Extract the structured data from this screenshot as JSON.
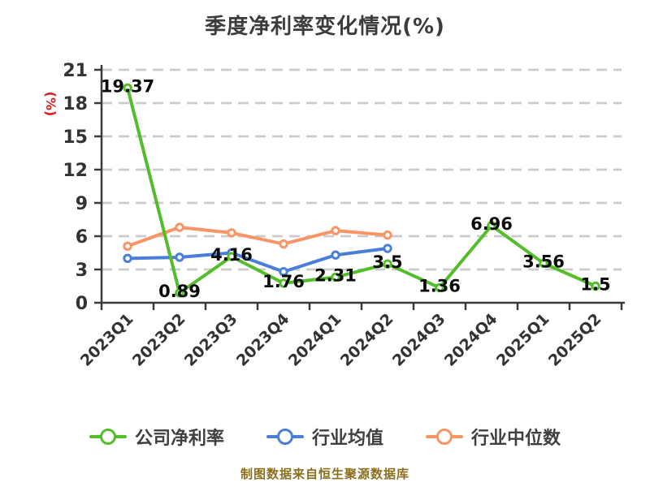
{
  "title": "季度净利率变化情况(%)",
  "footer": "制图数据来自恒生聚源数据库",
  "chart_data": {
    "type": "line",
    "title": "季度净利率变化情况(%)",
    "categories": [
      "2023Q1",
      "2023Q2",
      "2023Q3",
      "2023Q4",
      "2024Q1",
      "2024Q2",
      "2024Q3",
      "2024Q4",
      "2025Q1",
      "2025Q2"
    ],
    "series": [
      {
        "name": "公司净利率",
        "color": "#53bd2a",
        "values": [
          19.37,
          0.89,
          4.16,
          1.76,
          2.31,
          3.5,
          1.36,
          6.96,
          3.56,
          1.5
        ],
        "data_labels": true
      },
      {
        "name": "行业均值",
        "color": "#4a7ed9",
        "values": [
          4.0,
          4.1,
          4.5,
          2.8,
          4.3,
          4.9
        ],
        "data_labels": false
      },
      {
        "name": "行业中位数",
        "color": "#f99467",
        "values": [
          5.1,
          6.8,
          6.3,
          5.3,
          6.5,
          6.1
        ],
        "data_labels": false
      }
    ],
    "xlabel": "",
    "ylabel": "(%)",
    "ylim": [
      0,
      21
    ],
    "y_ticks": [
      0,
      3,
      6,
      9,
      12,
      15,
      18,
      21
    ],
    "grid": "horizontal-dashed",
    "x_tick_rotation": 45,
    "legend_position": "bottom",
    "marker": "circle-white-fill"
  },
  "colors": {
    "axis": "#3a3a3a",
    "gridline": "#cbcbcb",
    "tick_label": "#333333",
    "title": "#3c3c3c",
    "data_label": "#0a0a0a",
    "y_axis_name": "#dd1c1c",
    "legend_label": "#3f3f3f",
    "footer": "#8b6e1b",
    "background": "#ffffff"
  }
}
